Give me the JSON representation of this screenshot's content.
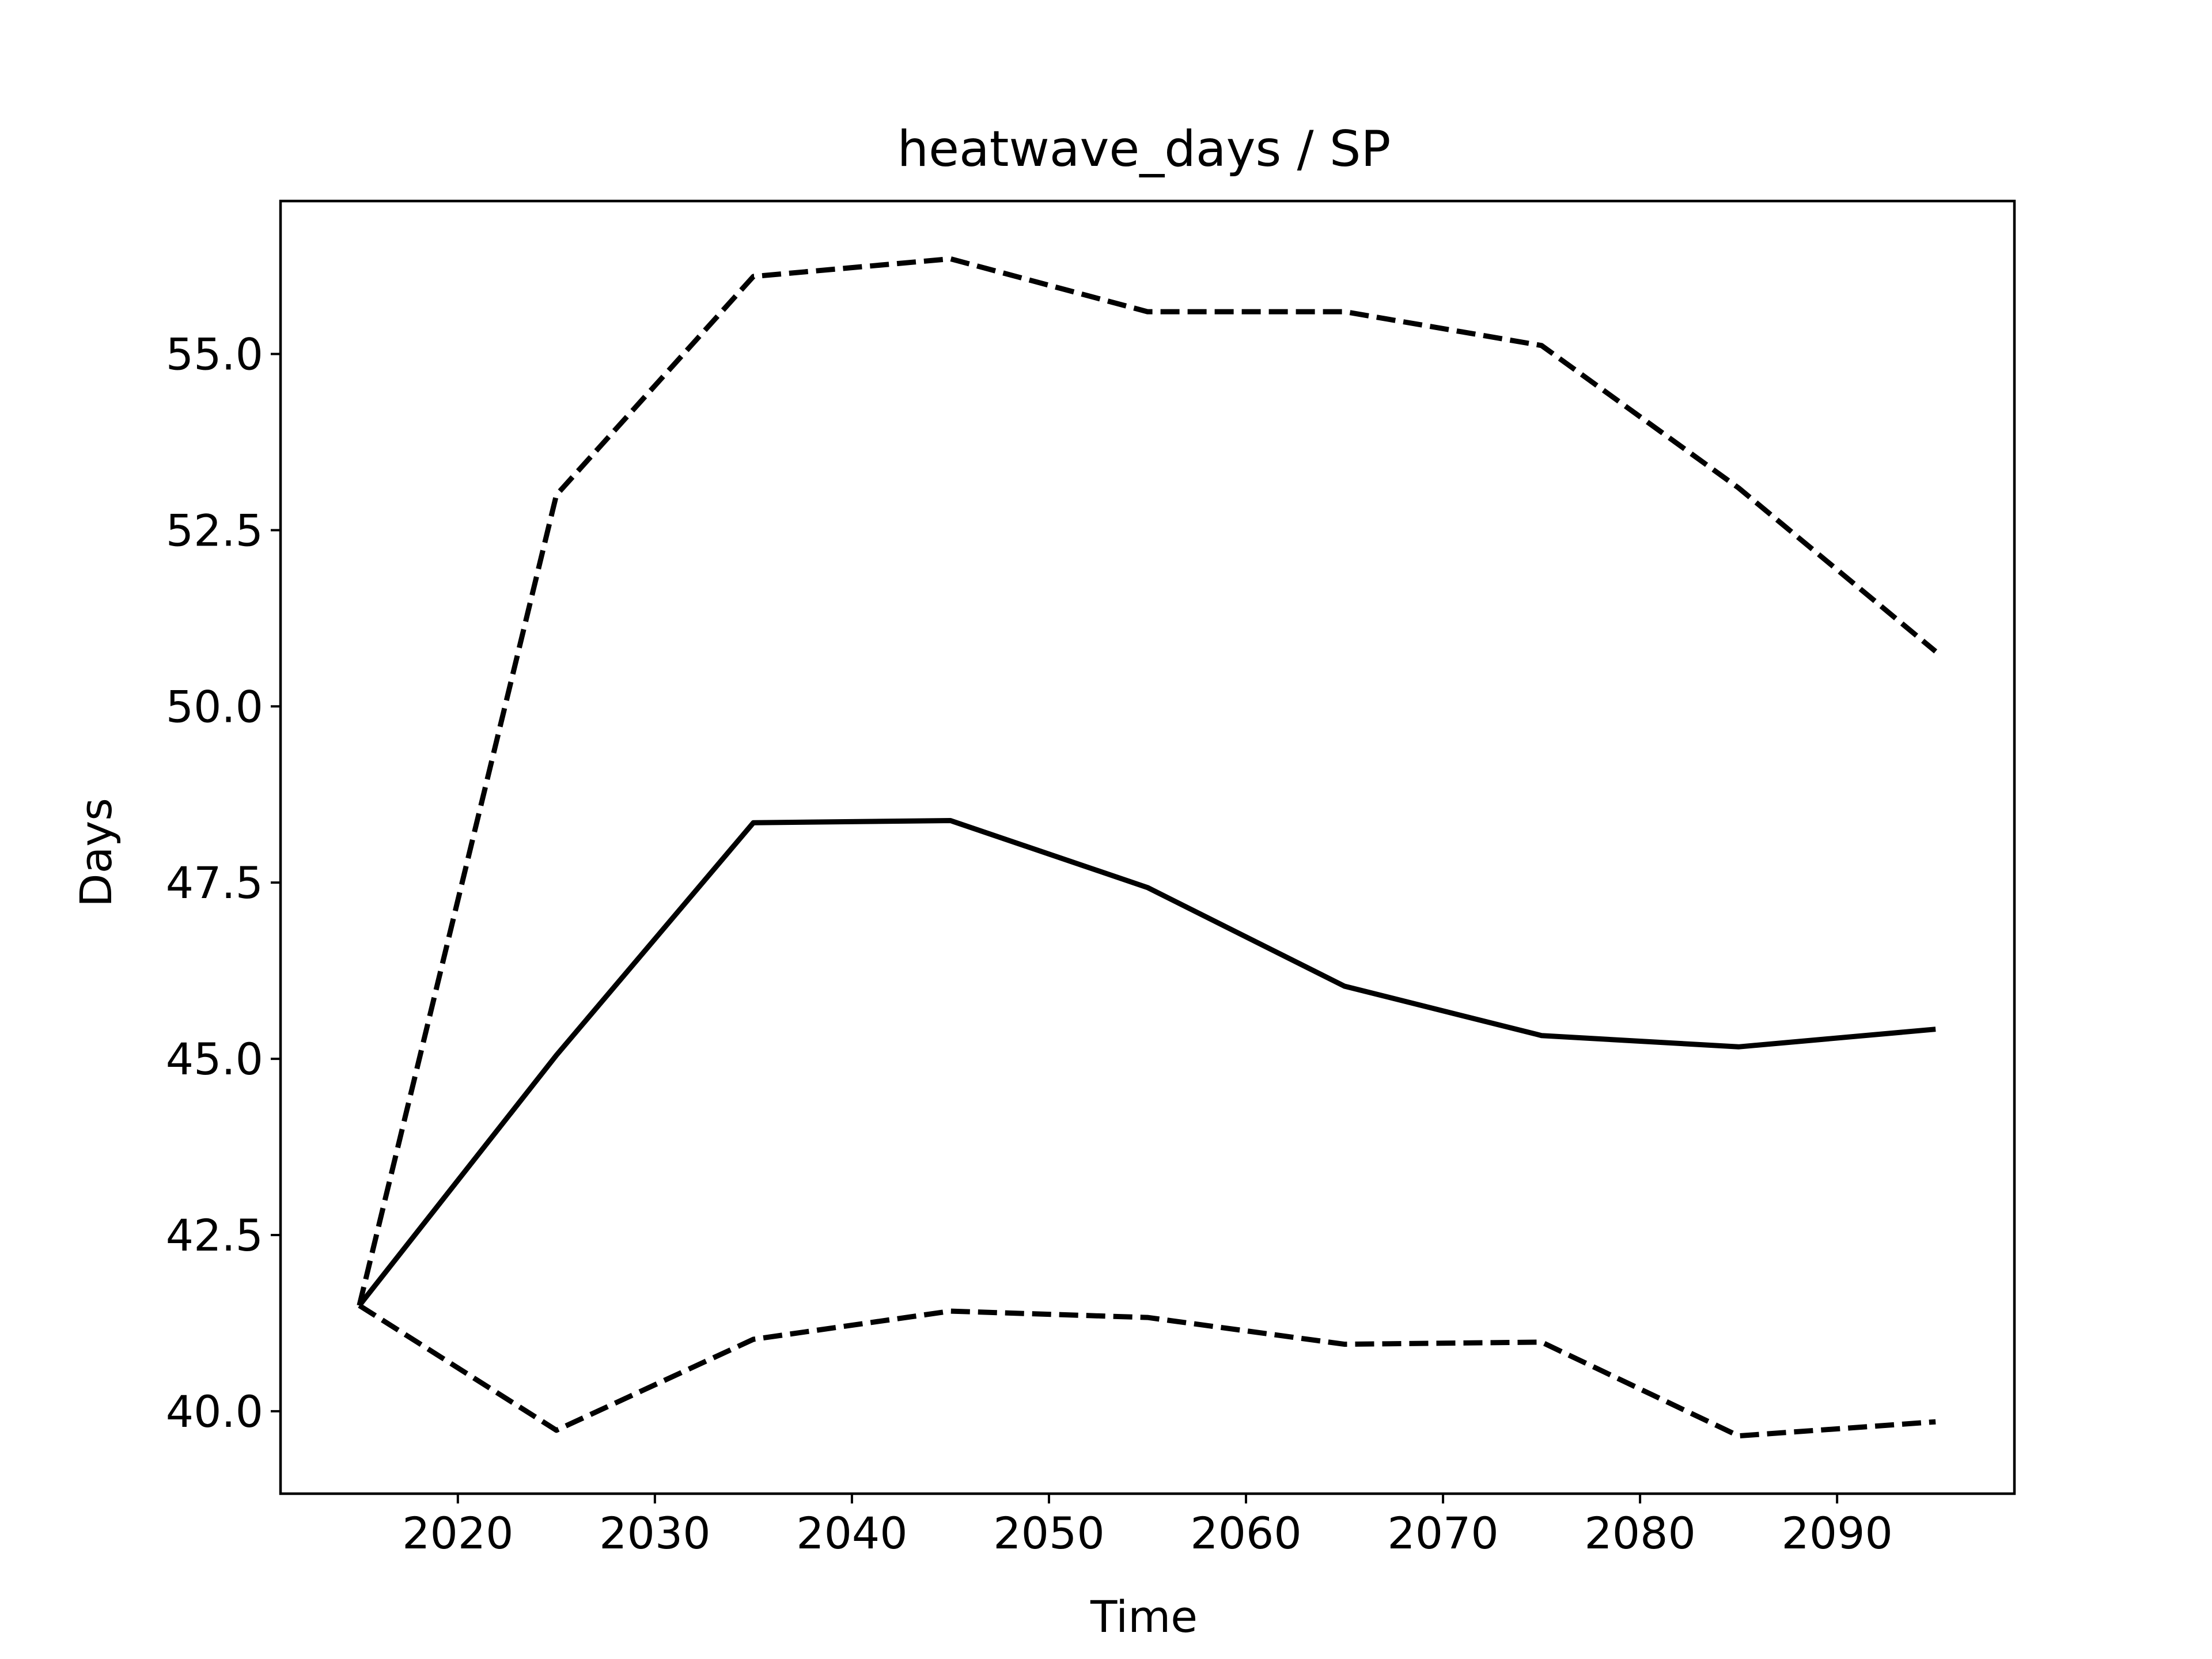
{
  "chart_data": {
    "type": "line",
    "title": "heatwave_days / SP",
    "xlabel": "Time",
    "ylabel": "Days",
    "xlim": [
      2011,
      2099
    ],
    "ylim": [
      38.83,
      57.17
    ],
    "x_ticks": [
      2020,
      2030,
      2040,
      2050,
      2060,
      2070,
      2080,
      2090
    ],
    "y_ticks": [
      40.0,
      42.5,
      45.0,
      47.5,
      50.0,
      52.5,
      55.0
    ],
    "y_tick_labels": [
      "40.0",
      "42.5",
      "45.0",
      "47.5",
      "50.0",
      "52.5",
      "55.0"
    ],
    "grid": false,
    "legend": "none",
    "x": [
      2015,
      2025,
      2035,
      2045,
      2055,
      2065,
      2075,
      2085,
      2095
    ],
    "series": [
      {
        "style": "solid",
        "color": "#000000",
        "values": [
          41.5,
          45.05,
          48.35,
          48.38,
          47.43,
          46.03,
          45.33,
          45.17,
          45.42
        ]
      },
      {
        "style": "dashed",
        "color": "#000000",
        "values": [
          41.5,
          53.0,
          56.1,
          56.35,
          55.6,
          55.6,
          55.12,
          53.1,
          50.78
        ]
      },
      {
        "style": "dashed",
        "color": "#000000",
        "values": [
          41.5,
          39.73,
          41.02,
          41.42,
          41.33,
          40.95,
          40.98,
          39.65,
          39.85
        ]
      }
    ]
  }
}
